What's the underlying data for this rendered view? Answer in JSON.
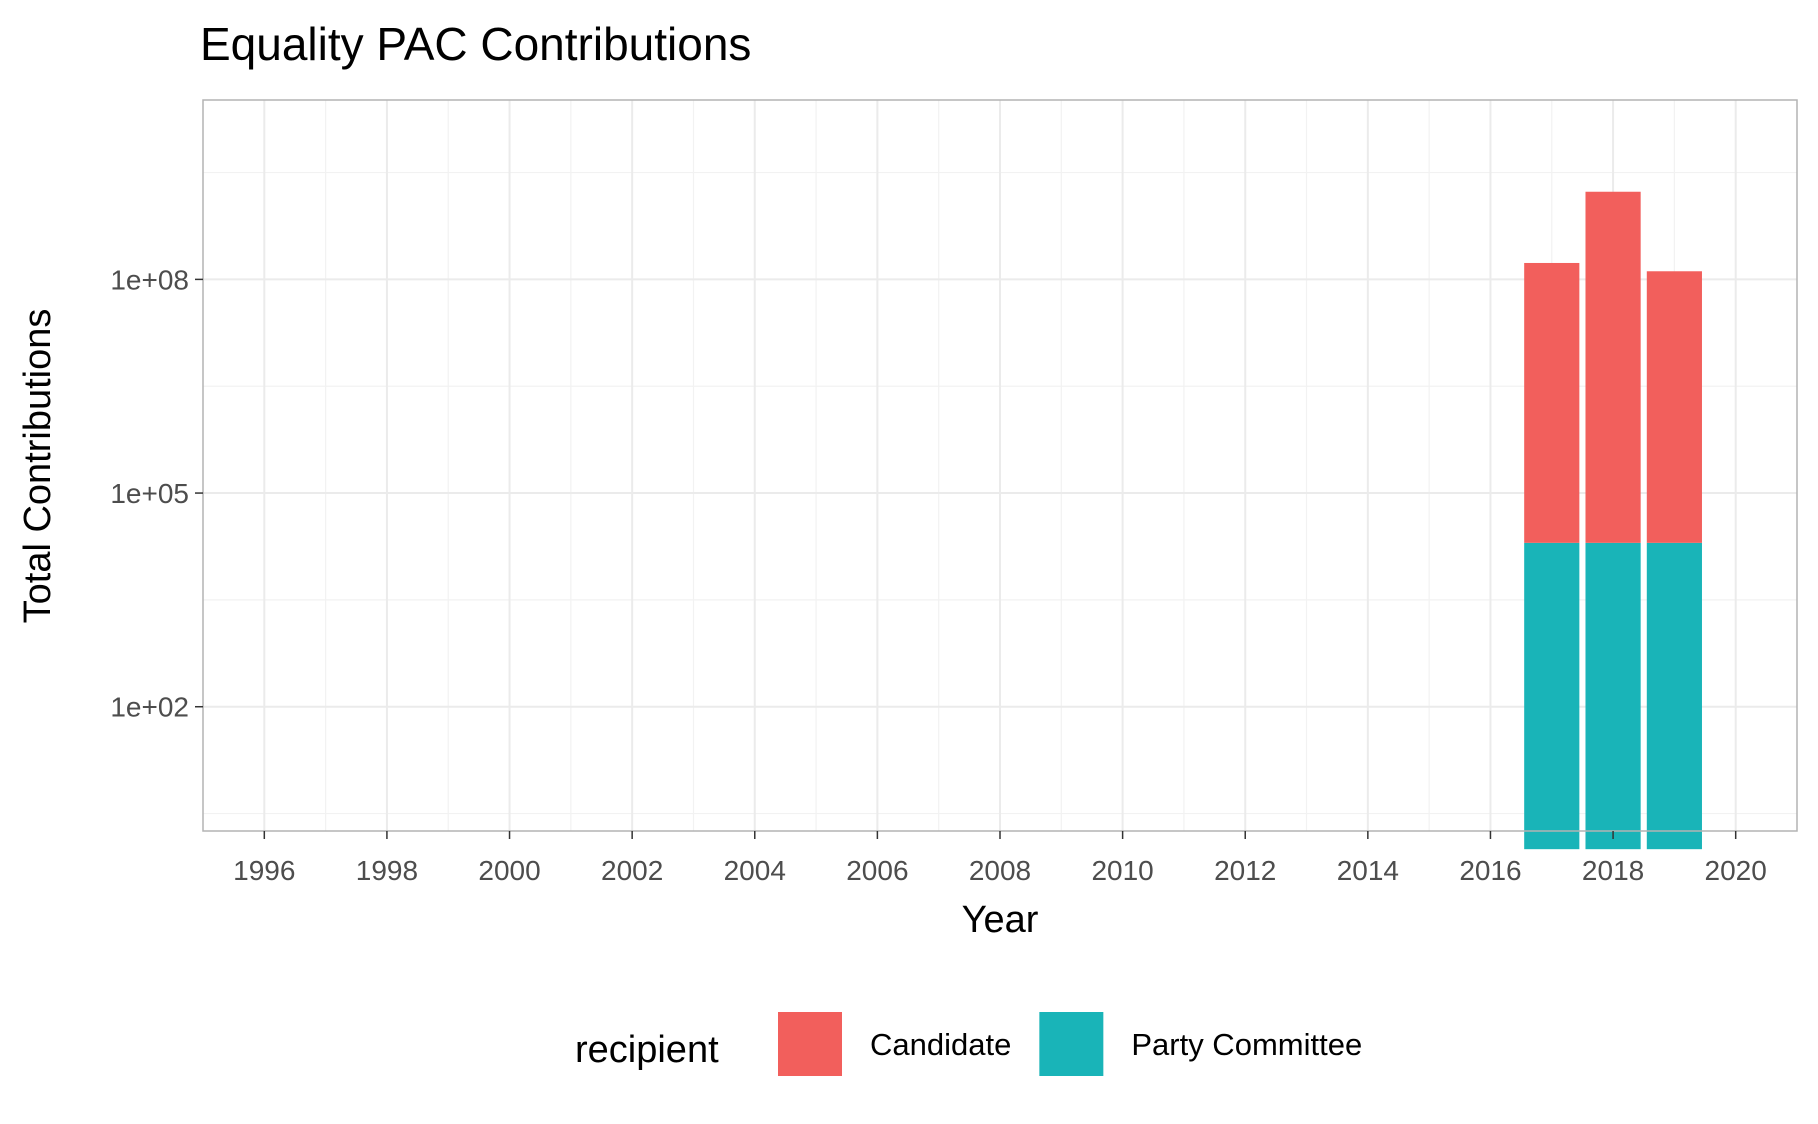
{
  "chart_data": {
    "type": "bar",
    "stacked": true,
    "title": "Equality PAC Contributions",
    "xlabel": "Year",
    "ylabel": "Total Contributions",
    "y_scale": "log10",
    "xlim": [
      1995,
      2021
    ],
    "ylim": [
      1.8,
      33000000000
    ],
    "x_ticks": [
      1996,
      1998,
      2000,
      2002,
      2004,
      2006,
      2008,
      2010,
      2012,
      2014,
      2016,
      2018,
      2020
    ],
    "x_tick_labels": [
      "1996",
      "1998",
      "2000",
      "2002",
      "2004",
      "2006",
      "2008",
      "2010",
      "2012",
      "2014",
      "2016",
      "2018",
      "2020"
    ],
    "y_ticks": [
      100,
      100000,
      100000000
    ],
    "y_tick_labels": [
      "1e+02",
      "1e+05",
      "1e+08"
    ],
    "grid": true,
    "legend_position": "bottom",
    "legend_title": "recipient",
    "series": [
      {
        "name": "Party Committee",
        "color": "#19B4B8",
        "values": [
          [
            2017,
            1,
            20000
          ],
          [
            2018,
            1,
            20000
          ],
          [
            2019,
            1,
            20000
          ]
        ]
      },
      {
        "name": "Candidate",
        "color": "#F25F5C",
        "values": [
          [
            2017,
            20000,
            170000000
          ],
          [
            2018,
            20000,
            1700000000
          ],
          [
            2019,
            20000,
            130000000
          ]
        ]
      }
    ],
    "legend": [
      {
        "label": "Candidate",
        "color": "#F25F5C"
      },
      {
        "label": "Party Committee",
        "color": "#19B4B8"
      }
    ]
  }
}
